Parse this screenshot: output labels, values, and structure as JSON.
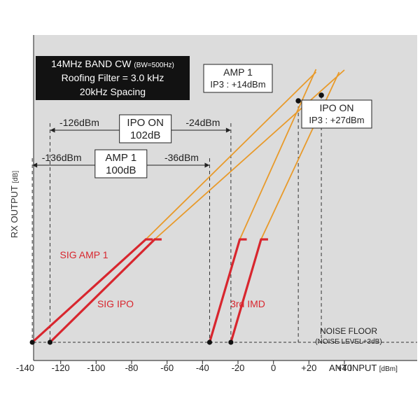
{
  "chart_data": {
    "type": "line",
    "title_lines": [
      "14MHz BAND CW",
      "Roofing Filter = 3.0 kHz",
      "20kHz Spacing"
    ],
    "title_note": "(BW=500Hz)",
    "ylabel": "RX OUTPUT",
    "ylabel_unit": "[dB]",
    "xlabel": "ANT INPUT",
    "xlabel_unit": "[dBm]",
    "xlim": [
      -140,
      40
    ],
    "x_ticks": [
      {
        "value": -140,
        "label": "-140"
      },
      {
        "value": -120,
        "label": "-120"
      },
      {
        "value": -100,
        "label": "-100"
      },
      {
        "value": -80,
        "label": "-80"
      },
      {
        "value": -60,
        "label": "-60"
      },
      {
        "value": -40,
        "label": "-40"
      },
      {
        "value": -20,
        "label": "-20"
      },
      {
        "value": 0,
        "label": "0"
      },
      {
        "value": 20,
        "label": "+20"
      },
      {
        "value": 40,
        "label": "+40"
      }
    ],
    "noise_floor": {
      "label": "NOISE FLOOR",
      "sublabel": "(NOISE LEVEL+3dB)"
    },
    "series": [
      {
        "name": "SIG AMP 1",
        "start_x": -136,
        "end_x": -72,
        "color": "#d8262e"
      },
      {
        "name": "SIG IPO",
        "start_x": -126,
        "end_x": -67,
        "color": "#d8262e"
      },
      {
        "name": "3rd IMD",
        "start_x": -36,
        "end_x": -19,
        "color": "#d8262e"
      },
      {
        "name": "3rd IMD",
        "start_x": -24,
        "end_x": -7,
        "color": "#d8262e"
      }
    ],
    "extrapolations": [
      {
        "from_x": -72,
        "to_x": 24,
        "color": "#e89a2a"
      },
      {
        "from_x": -67,
        "to_x": 40,
        "color": "#e89a2a"
      },
      {
        "from_x": -19,
        "to_x": 24,
        "color": "#e89a2a"
      },
      {
        "from_x": -7,
        "to_x": 37,
        "color": "#e89a2a"
      }
    ],
    "intercept_points": [
      {
        "x": 14,
        "name": "AMP 1"
      },
      {
        "x": 27,
        "name": "IPO ON"
      }
    ],
    "callouts": [
      {
        "line1": "AMP 1",
        "line2": "IP3 : +14dBm"
      },
      {
        "line1": "IPO ON",
        "line2": "IP3 : +27dBm"
      }
    ],
    "dynamic_range": [
      {
        "from_label": "-126dBm",
        "to_label": "-24dBm",
        "from_x": -126,
        "to_x": -24,
        "box_line1": "IPO ON",
        "box_line2": "102dB"
      },
      {
        "from_label": "-136dBm",
        "to_label": "-36dBm",
        "from_x": -136,
        "to_x": -36,
        "box_line1": "AMP 1",
        "box_line2": "100dB"
      }
    ],
    "series_labels": {
      "sig_amp1": "SIG AMP 1",
      "sig_ipo": "SIG IPO",
      "imd": "3rd IMD"
    },
    "colors": {
      "panel": "#dcdcdc",
      "signal": "#d8262e",
      "extrapolation": "#e89a2a",
      "title_box": "#121212",
      "title_text": "#ffffff"
    }
  }
}
